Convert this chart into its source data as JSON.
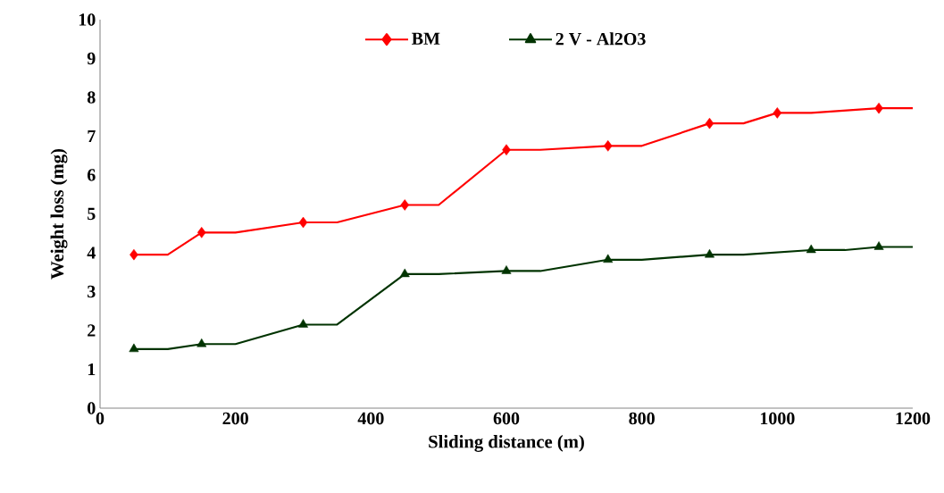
{
  "chart_data": {
    "type": "line",
    "xlabel": "Sliding distance (m)",
    "ylabel": "Weight loss (mg)",
    "xlim": [
      0,
      1200
    ],
    "ylim": [
      0,
      10
    ],
    "xticks": [
      0,
      200,
      400,
      600,
      800,
      1000,
      1200
    ],
    "yticks": [
      0,
      1,
      2,
      3,
      4,
      5,
      6,
      7,
      8,
      9,
      10
    ],
    "grid": false,
    "legend": "top",
    "series": [
      {
        "name": "BM",
        "color": "#ff0000",
        "x": [
          50,
          100,
          150,
          200,
          300,
          350,
          450,
          500,
          600,
          650,
          750,
          800,
          900,
          950,
          1000,
          1050,
          1150,
          1200
        ],
        "values": [
          3.95,
          3.95,
          4.52,
          4.52,
          4.78,
          4.78,
          5.23,
          5.23,
          6.65,
          6.65,
          6.75,
          6.75,
          7.33,
          7.33,
          7.6,
          7.6,
          7.72,
          7.72
        ]
      },
      {
        "type": "scatter",
        "color": "#ff0000",
        "marker": "diamond",
        "x": [
          50,
          150,
          300,
          450,
          600,
          750,
          900,
          1000,
          1150
        ],
        "values": [
          3.95,
          4.52,
          4.78,
          5.23,
          6.65,
          6.75,
          7.33,
          7.6,
          7.72
        ]
      },
      {
        "name": "2 V - Al2O3",
        "color": "#003300",
        "x": [
          50,
          100,
          150,
          200,
          300,
          350,
          450,
          500,
          600,
          650,
          750,
          800,
          900,
          950,
          1050,
          1100,
          1150,
          1200
        ],
        "values": [
          1.52,
          1.52,
          1.65,
          1.65,
          2.15,
          2.15,
          3.45,
          3.45,
          3.53,
          3.53,
          3.82,
          3.82,
          3.95,
          3.95,
          4.07,
          4.07,
          4.15,
          4.15
        ]
      },
      {
        "type": "scatter",
        "color": "#003300",
        "marker": "triangle",
        "x": [
          50,
          150,
          300,
          450,
          600,
          750,
          900,
          1050,
          1150
        ],
        "values": [
          1.52,
          1.65,
          2.15,
          3.45,
          3.53,
          3.82,
          3.95,
          4.07,
          4.15
        ]
      }
    ]
  }
}
